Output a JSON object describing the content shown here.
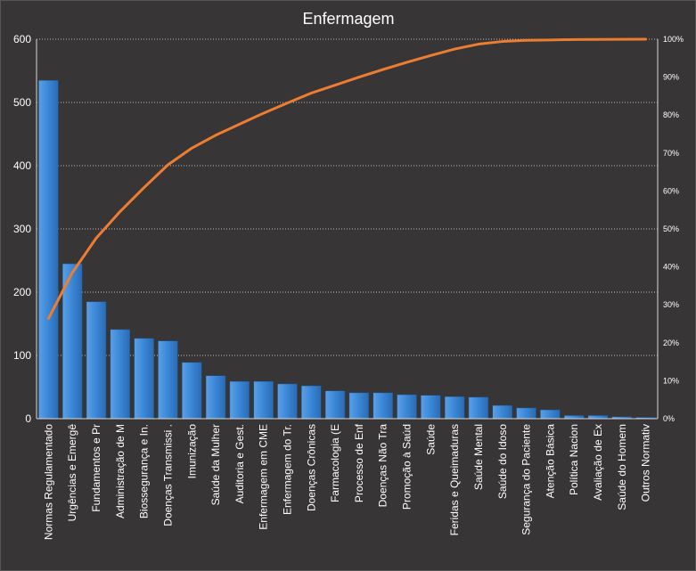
{
  "chart_data": {
    "type": "bar",
    "title": "Enfermagem",
    "categories": [
      "Normas Regulamentado",
      "Urgências e Emergê",
      "Fundamentos e Pr",
      "Administração de M",
      "Biossegurança e In.",
      "Doenças Transmissi .",
      "Imunização",
      "Saúde da Mulher",
      "Auditoria e Gest.",
      "Enfermagem em CME",
      "Enfermagem do Tr.",
      "Doenças Crônicas",
      "Farmacologia (E",
      "Processo de Enf",
      "Doenças Não Tra",
      "Promoção à Saúd",
      "Saúde",
      "Feridas e Queimaduras",
      "Saúde Mental",
      "Saúde do Idoso",
      "Segurança do Paciente",
      "Atenção Básica",
      "Política Nacion",
      "Avaliação de Ex",
      "Saúde do Homem",
      "Outros Normativ"
    ],
    "series": [
      {
        "type": "bar",
        "values": [
          535,
          245,
          185,
          141,
          127,
          123,
          89,
          68,
          59,
          59,
          55,
          52,
          44,
          41,
          41,
          38,
          37,
          35,
          34,
          21,
          17,
          14,
          5,
          5,
          3,
          2
        ],
        "color": "#3a86d6"
      },
      {
        "type": "line",
        "axis": "secondary",
        "values": [
          26.4,
          38.5,
          47.6,
          54.6,
          60.9,
          66.9,
          71.3,
          74.7,
          77.6,
          80.5,
          83.2,
          85.8,
          87.9,
          90.0,
          92.0,
          93.9,
          95.7,
          97.4,
          98.7,
          99.4,
          99.7,
          99.8,
          99.9,
          99.95,
          99.98,
          100
        ],
        "color": "#ed7d31"
      }
    ],
    "y_axis": {
      "min": 0,
      "max": 600,
      "ticks": [
        "0",
        "100",
        "200",
        "300",
        "400",
        "500",
        "600"
      ]
    },
    "y2_axis": {
      "min": 0,
      "max": 100,
      "unit": "%",
      "ticks": [
        "0%",
        "10%",
        "20%",
        "30%",
        "40%",
        "50%",
        "60%",
        "70%",
        "80%",
        "90%",
        "100%"
      ]
    },
    "grid": true
  }
}
